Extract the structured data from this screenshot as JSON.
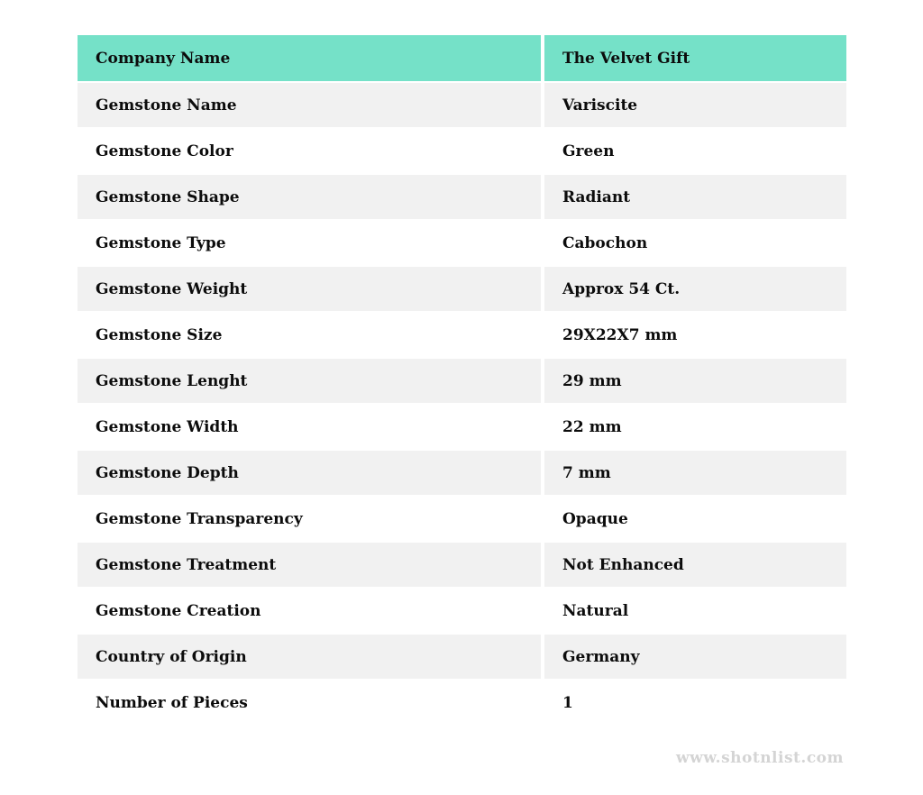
{
  "page": {
    "watermark": "www.shotnlist.com"
  },
  "colors": {
    "header_bg": "#75e1c8",
    "row_alt_bg": "#f1f1f1",
    "row_bg": "#ffffff",
    "text": "#0c0c0c",
    "watermark_text": "#d4d4d4"
  },
  "table": {
    "header": {
      "label": "Company Name",
      "value": "The Velvet Gift"
    },
    "rows": [
      {
        "label": "Gemstone Name",
        "value": "Variscite"
      },
      {
        "label": "Gemstone Color",
        "value": "Green"
      },
      {
        "label": "Gemstone Shape",
        "value": "Radiant"
      },
      {
        "label": "Gemstone Type",
        "value": "Cabochon"
      },
      {
        "label": "Gemstone Weight",
        "value": "Approx 54 Ct."
      },
      {
        "label": "Gemstone Size",
        "value": "29X22X7 mm"
      },
      {
        "label": "Gemstone Lenght",
        "value": "29 mm"
      },
      {
        "label": "Gemstone Width",
        "value": "22 mm"
      },
      {
        "label": "Gemstone Depth",
        "value": "7 mm"
      },
      {
        "label": "Gemstone Transparency",
        "value": "Opaque"
      },
      {
        "label": "Gemstone Treatment",
        "value": "Not Enhanced"
      },
      {
        "label": "Gemstone Creation",
        "value": "Natural"
      },
      {
        "label": "Country of Origin",
        "value": "Germany"
      },
      {
        "label": "Number of Pieces",
        "value": "1"
      }
    ]
  }
}
